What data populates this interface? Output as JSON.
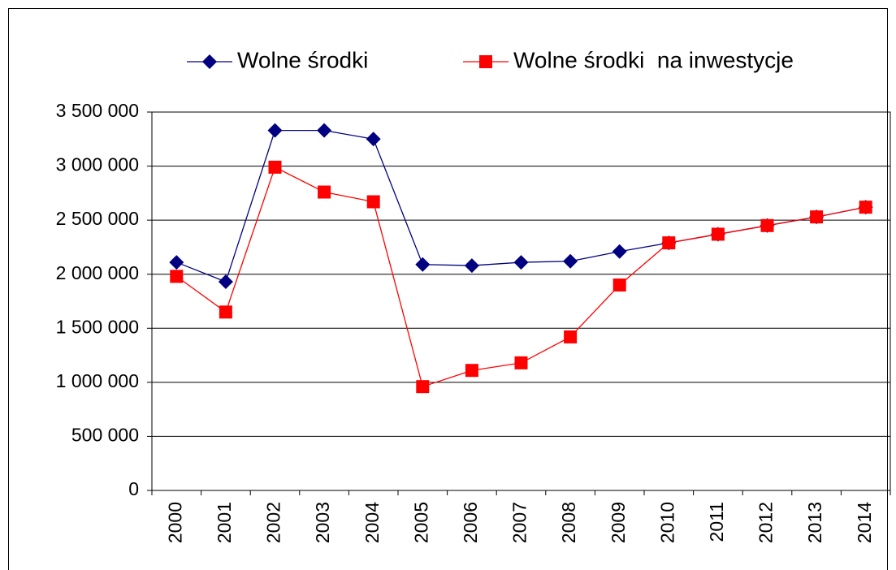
{
  "chart_data": {
    "type": "line",
    "categories": [
      "2000",
      "2001",
      "2002",
      "2003",
      "2004",
      "2005",
      "2006",
      "2007",
      "2008",
      "2009",
      "2010",
      "2011",
      "2012",
      "2013",
      "2014"
    ],
    "series": [
      {
        "name": "Wolne środki",
        "color": "#000080",
        "marker": "diamond",
        "values": [
          2110000,
          1930000,
          3330000,
          3330000,
          3250000,
          2090000,
          2080000,
          2110000,
          2120000,
          2210000,
          2290000,
          2370000,
          2450000,
          2530000,
          2620000
        ]
      },
      {
        "name": "Wolne środki  na inwestycje",
        "color": "#ff0000",
        "marker": "square",
        "values": [
          1980000,
          1650000,
          2990000,
          2760000,
          2670000,
          960000,
          1110000,
          1180000,
          1420000,
          1900000,
          2290000,
          2370000,
          2450000,
          2530000,
          2620000
        ]
      }
    ],
    "ylim": [
      0,
      3500000
    ],
    "yticks": [
      0,
      {
        "value": 500000,
        "label": "500 000"
      },
      {
        "value": 1000000,
        "label": "1 000 000"
      },
      {
        "value": 1500000,
        "label": "1 500 000"
      },
      {
        "value": 2000000,
        "label": "2 000 000"
      },
      {
        "value": 2500000,
        "label": "2 500 000"
      },
      {
        "value": 3000000,
        "label": "3 000 000"
      },
      {
        "value": 3500000,
        "label": "3 500 000"
      }
    ],
    "grid": true,
    "legend": "top"
  }
}
